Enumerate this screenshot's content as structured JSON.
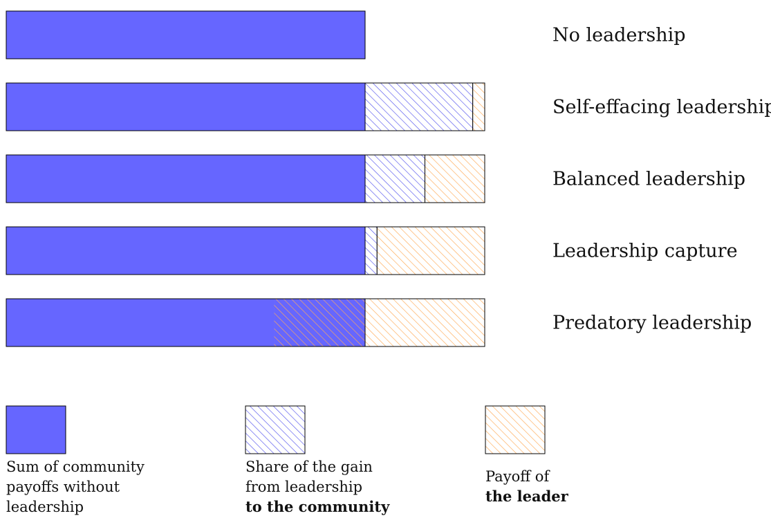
{
  "colors": {
    "community_base": "#6666ff",
    "community_gain_hatch": "#5555ee",
    "leader_hatch": "#ffaa55",
    "outline": "#000000"
  },
  "rows": [
    {
      "label": "No leadership",
      "base": 0.75,
      "community_gain": 0,
      "leader": 0,
      "taken_from_base": 0
    },
    {
      "label": "Self-effacing leadership",
      "base": 0.75,
      "community_gain": 0.225,
      "leader": 0.025,
      "taken_from_base": 0
    },
    {
      "label": "Balanced leadership",
      "base": 0.75,
      "community_gain": 0.125,
      "leader": 0.125,
      "taken_from_base": 0
    },
    {
      "label": "Leadership capture",
      "base": 0.75,
      "community_gain": 0.025,
      "leader": 0.225,
      "taken_from_base": 0
    },
    {
      "label": "Predatory leadership",
      "base": 0.75,
      "community_gain": 0,
      "leader": 0.25,
      "taken_from_base": 0.19
    }
  ],
  "legend": [
    {
      "key": "community_base",
      "lines": [
        "Sum of community",
        "payoffs without",
        "leadership"
      ],
      "bold_lines": []
    },
    {
      "key": "community_gain",
      "lines": [
        "Share of the gain",
        "from leadership"
      ],
      "bold_lines": [
        "to the community"
      ]
    },
    {
      "key": "leader",
      "lines": [
        "Payoff of"
      ],
      "bold_lines": [
        "the leader"
      ]
    }
  ]
}
